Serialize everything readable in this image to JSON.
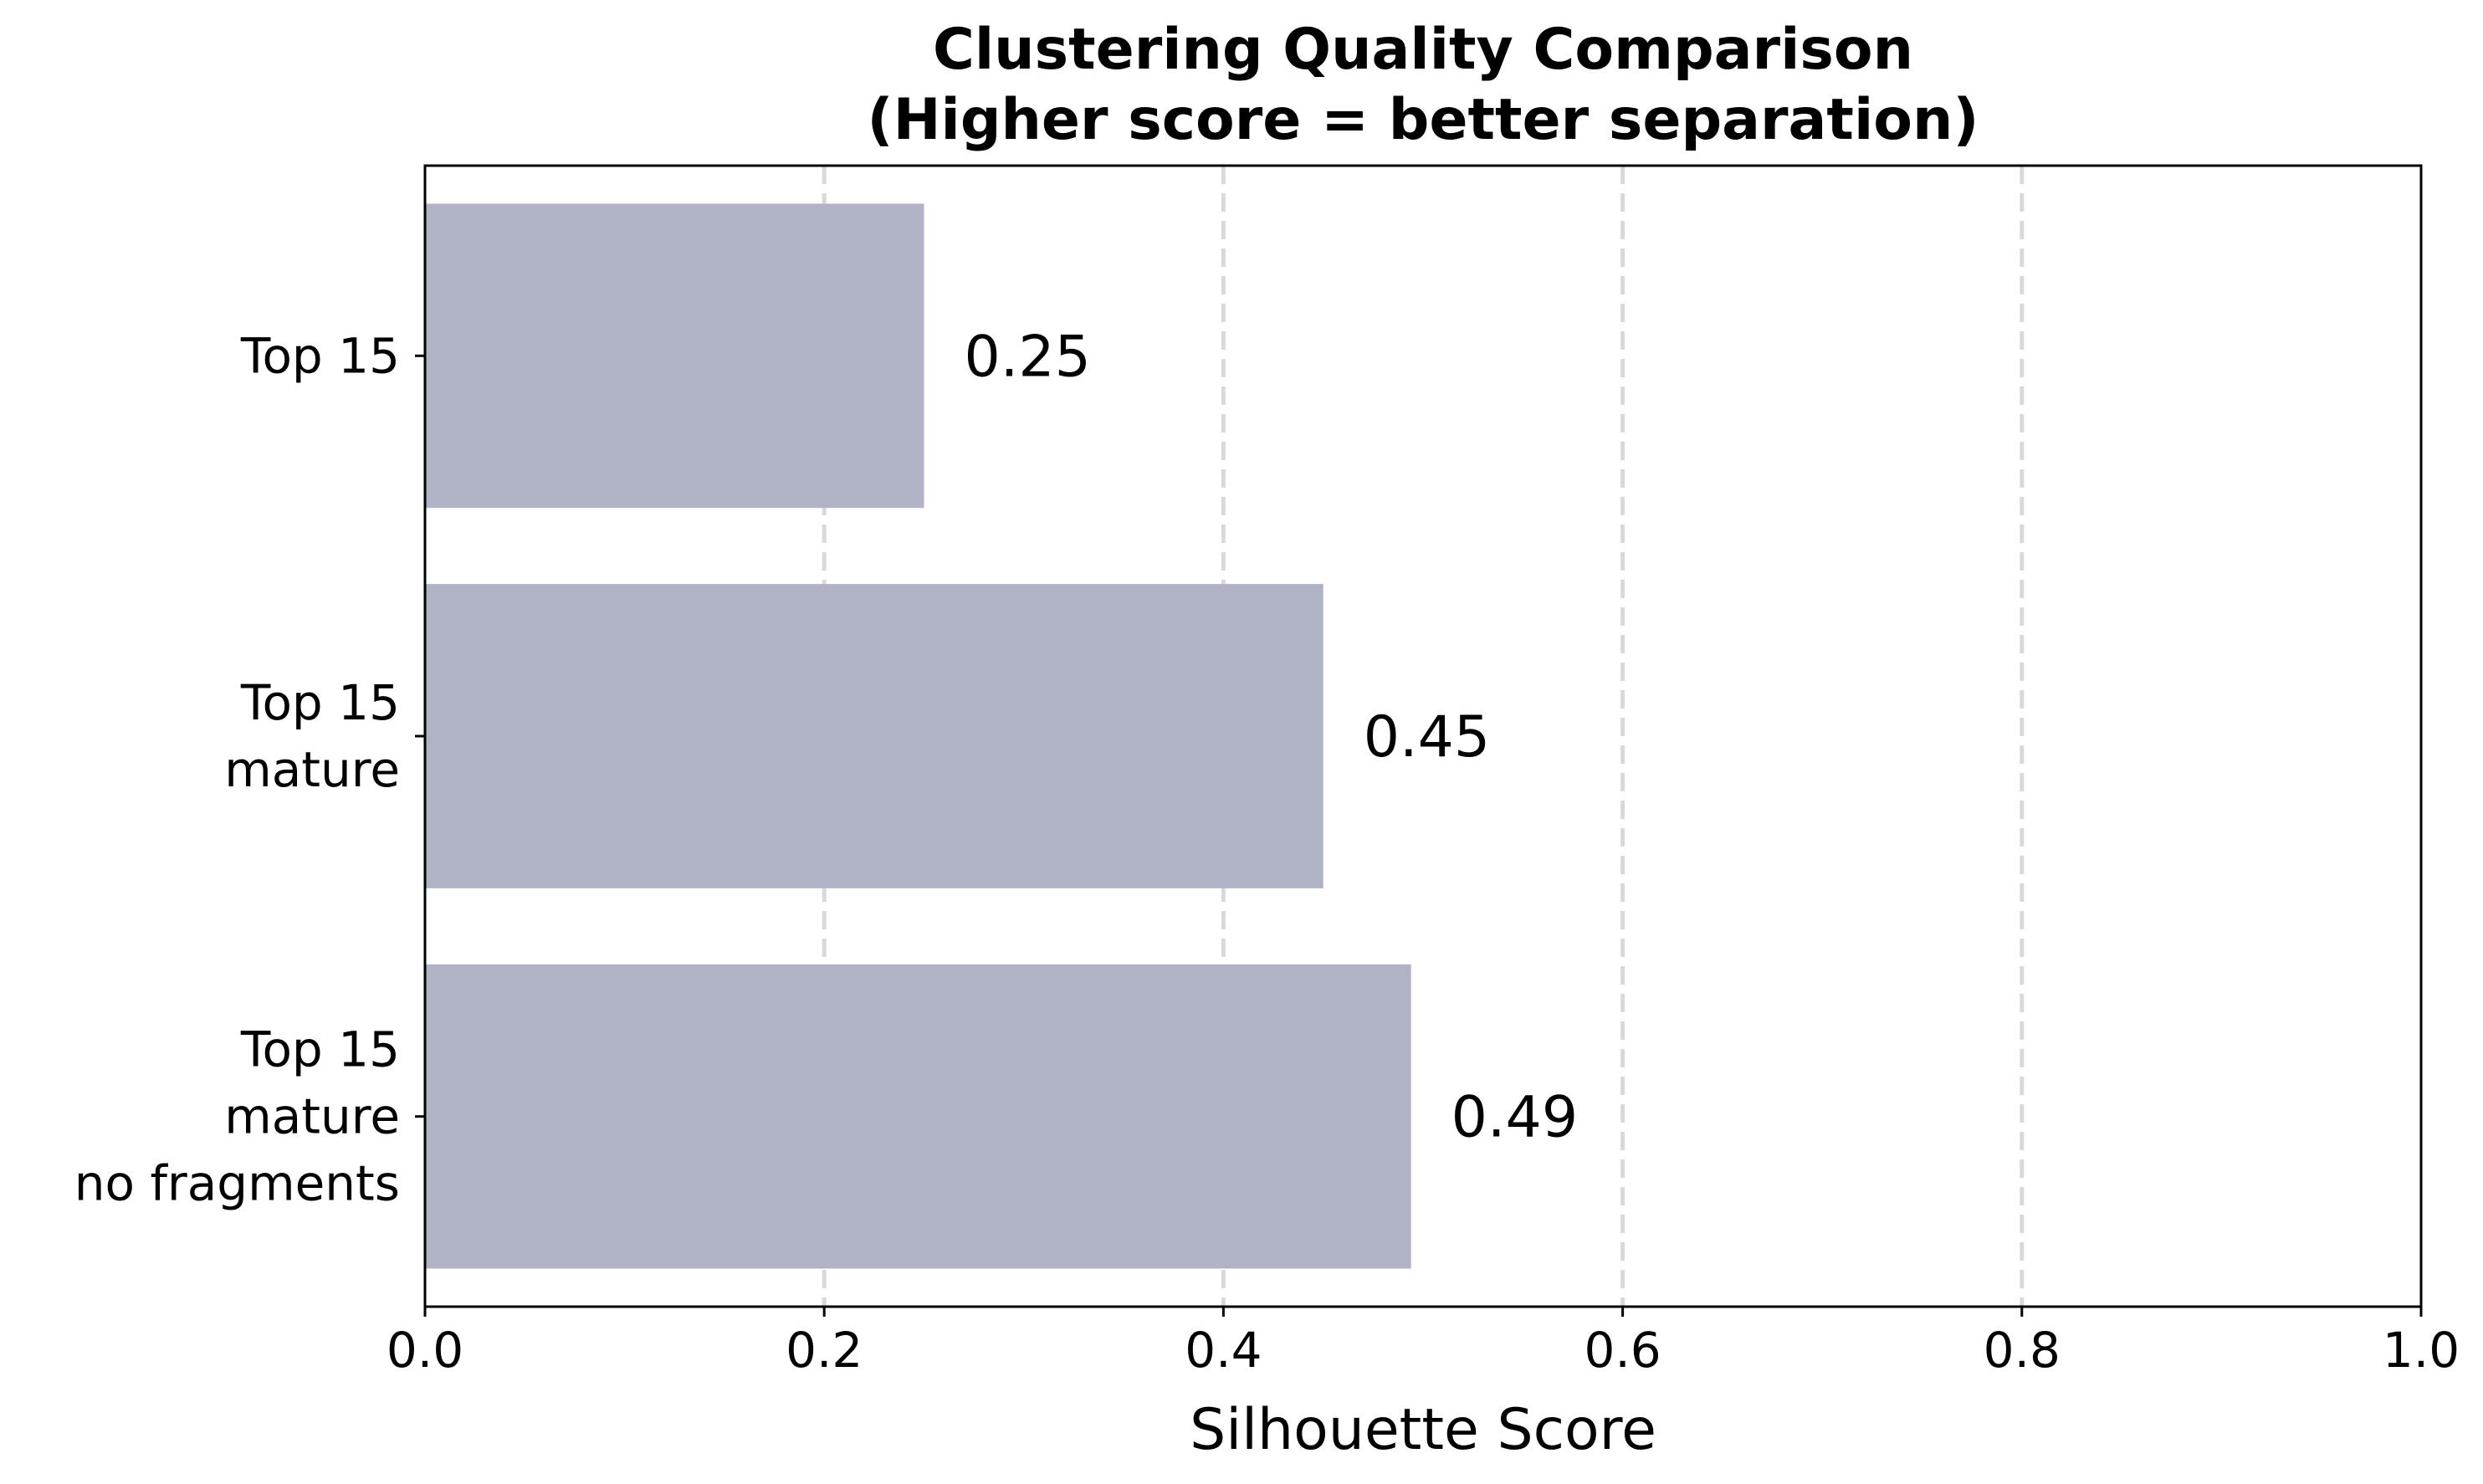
{
  "chart_data": {
    "type": "bar",
    "orientation": "horizontal",
    "title": [
      "Clustering Quality Comparison",
      "(Higher score = better separation)"
    ],
    "xlabel": "Silhouette Score",
    "ylabel": "",
    "xlim": [
      0,
      1.0
    ],
    "xticks": [
      "0.0",
      "0.2",
      "0.4",
      "0.6",
      "0.8",
      "1.0"
    ],
    "categories": [
      [
        "Top 15"
      ],
      [
        "Top 15",
        "mature"
      ],
      [
        "Top 15",
        "mature",
        "no fragments"
      ]
    ],
    "values": [
      0.25,
      0.45,
      0.494
    ],
    "value_labels": [
      "0.25",
      "0.45",
      "0.49"
    ],
    "bar_color": "#b0b3c6",
    "grid": {
      "axis": "x",
      "style": "dashed",
      "color": "#d9d9d9"
    }
  }
}
